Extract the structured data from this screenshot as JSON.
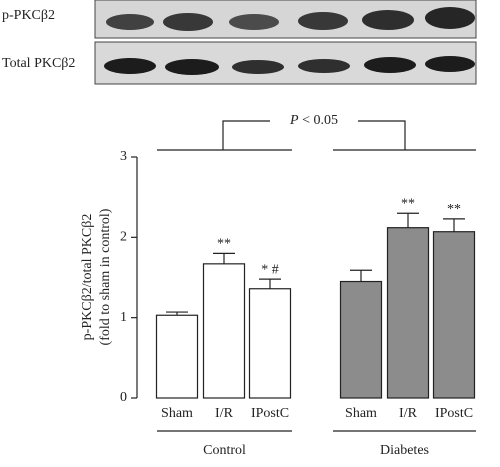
{
  "blot_labels": [
    "p-PKCβ2",
    "Total PKCβ2"
  ],
  "chart_data": {
    "type": "bar",
    "ylabel": [
      "p-PKCβ2/total PKCβ2",
      "(fold to sham in control)"
    ],
    "categories": [
      "Sham",
      "I/R",
      "IPostC",
      "Sham",
      "I/R",
      "IPostC"
    ],
    "values": [
      1.03,
      1.67,
      1.36,
      1.45,
      2.12,
      2.07
    ],
    "errors": [
      0.04,
      0.13,
      0.12,
      0.14,
      0.18,
      0.16
    ],
    "colors": [
      "#ffffff",
      "#ffffff",
      "#ffffff",
      "#8c8c8c",
      "#8c8c8c",
      "#8c8c8c"
    ],
    "annotations": [
      null,
      "**",
      "* #",
      null,
      "**",
      "**"
    ],
    "groups": [
      "Control",
      "Diabetes"
    ],
    "comparison": {
      "symbol": "P",
      "text": "< 0.05"
    },
    "ylim": [
      0,
      3
    ],
    "yticks": [
      0,
      1,
      2,
      3
    ]
  }
}
